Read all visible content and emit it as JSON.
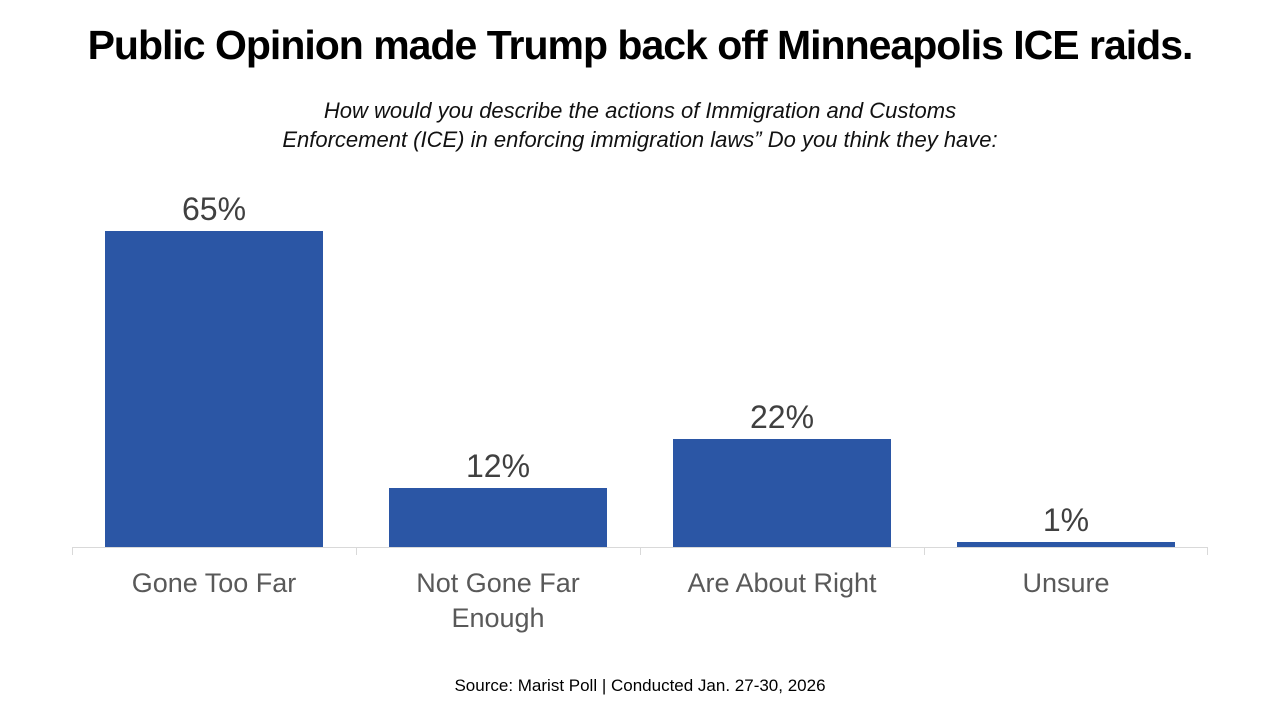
{
  "title": "Public Opinion made Trump back off Minneapolis ICE raids.",
  "subtitle": {
    "line1": "How would you describe the actions of Immigration and Customs",
    "line2": "Enforcement (ICE) in enforcing immigration laws” Do you think they have:"
  },
  "source": "Source: Marist Poll | Conducted Jan. 27-30, 2026",
  "colors": {
    "bar": "#2B56A5",
    "value_label": "#404040",
    "category_label": "#595959",
    "axis_line": "#D9D9D9",
    "title_text": "#000000"
  },
  "chart_data": {
    "type": "bar",
    "title": "Public Opinion made Trump back off Minneapolis ICE raids.",
    "subtitle": "How would you describe the actions of Immigration and Customs Enforcement (ICE) in enforcing immigration laws” Do you think they have:",
    "categories": [
      "Gone Too Far",
      "Not Gone Far Enough",
      "Are About Right",
      "Unsure"
    ],
    "values": [
      65,
      12,
      22,
      1
    ],
    "value_labels": [
      "65%",
      "12%",
      "22%",
      "1%"
    ],
    "xlabel": "",
    "ylabel": "",
    "ylim": [
      0,
      65
    ],
    "grid": false,
    "legend": false,
    "orientation": "vertical",
    "source_note": "Source: Marist Poll | Conducted Jan. 27-30, 2026"
  }
}
